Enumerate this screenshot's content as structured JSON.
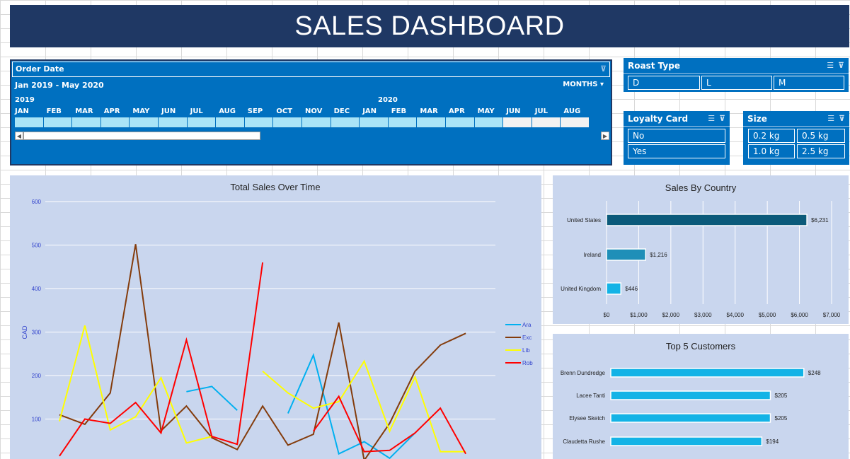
{
  "header": {
    "title": "SALES DASHBOARD"
  },
  "timeline": {
    "title": "Order Date",
    "range": "Jan 2019 - May 2020",
    "level": "MONTHS",
    "years": [
      "2019",
      "2020"
    ],
    "months": [
      "JAN",
      "FEB",
      "MAR",
      "APR",
      "MAY",
      "JUN",
      "JUL",
      "AUG",
      "SEP",
      "OCT",
      "NOV",
      "DEC",
      "JAN",
      "FEB",
      "MAR",
      "APR",
      "MAY",
      "JUN",
      "JUL",
      "AUG"
    ],
    "selected_count": 17
  },
  "roast": {
    "title": "Roast Type",
    "items": [
      "D",
      "L",
      "M"
    ]
  },
  "loyalty": {
    "title": "Loyalty Card",
    "items": [
      "No",
      "Yes"
    ]
  },
  "size": {
    "title": "Size",
    "items": [
      "0.2 kg",
      "0.5 kg",
      "1.0 kg",
      "2.5 kg"
    ]
  },
  "icons": {
    "multiselect": "multi-select-icon",
    "clear_filter": "clear-filter-icon",
    "dropdown": "chevron-down-icon",
    "scroll_left": "scroll-left-icon",
    "scroll_right": "scroll-right-icon"
  },
  "colors": {
    "title_bg": "#1f3864",
    "slicer_bg": "#0070c0",
    "panel_bg": "#c9d6ee"
  },
  "chart_data": [
    {
      "type": "line",
      "title": "Total Sales Over Time",
      "xlabel": "",
      "ylabel": "CAD",
      "ylim": [
        0,
        600
      ],
      "yticks": [
        100,
        200,
        300,
        400,
        500,
        600
      ],
      "grid": true,
      "legend": "right",
      "x": [
        1,
        2,
        3,
        4,
        5,
        6,
        7,
        8,
        9,
        10,
        11,
        12,
        13,
        14,
        15,
        16,
        17,
        18
      ],
      "series": [
        {
          "name": "Ara",
          "color": "#00b0f0",
          "values": [
            null,
            null,
            null,
            null,
            null,
            163,
            175,
            120,
            null,
            113,
            247,
            20,
            48,
            10,
            68,
            null,
            null,
            null
          ]
        },
        {
          "name": "Exc",
          "color": "#843c0c",
          "values": [
            110,
            88,
            160,
            502,
            73,
            130,
            57,
            30,
            130,
            40,
            65,
            322,
            5,
            90,
            210,
            270,
            297,
            null
          ]
        },
        {
          "name": "Lib",
          "color": "#ffff00",
          "values": [
            95,
            315,
            75,
            105,
            195,
            45,
            60,
            null,
            210,
            160,
            125,
            140,
            233,
            72,
            197,
            25,
            25,
            null
          ]
        },
        {
          "name": "Rob",
          "color": "#ff0000",
          "values": [
            15,
            100,
            90,
            138,
            68,
            282,
            60,
            42,
            460,
            null,
            72,
            152,
            25,
            28,
            68,
            125,
            20,
            null
          ]
        }
      ]
    },
    {
      "type": "bar",
      "title": "Sales By Country",
      "categories": [
        "United States",
        "Ireland",
        "United Kingdom"
      ],
      "values": [
        6231,
        1216,
        446
      ],
      "labels": [
        "$6,231",
        "$1,216",
        "$446"
      ],
      "colors": [
        "#0b5a7a",
        "#1f8fb8",
        "#13b3e6"
      ],
      "xlim": [
        0,
        7000
      ],
      "xticks": [
        "$0",
        "$1,000",
        "$2,000",
        "$3,000",
        "$4,000",
        "$5,000",
        "$6,000",
        "$7,000"
      ],
      "orientation": "horizontal"
    },
    {
      "type": "bar",
      "title": "Top 5 Customers",
      "categories": [
        "Brenn Dundredge",
        "Lacee Tanti",
        "Elysee Sketch",
        "Claudetta Rushe"
      ],
      "values": [
        248,
        205,
        205,
        194
      ],
      "labels": [
        "$248",
        "$205",
        "$205",
        "$194"
      ],
      "color": "#13b3e6",
      "xmax": 280,
      "orientation": "horizontal"
    }
  ]
}
